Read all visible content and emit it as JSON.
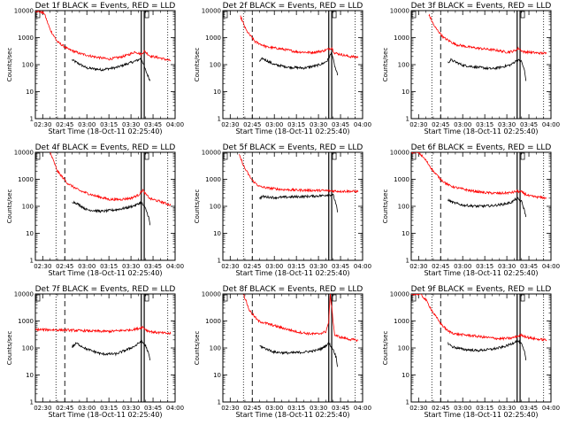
{
  "figure": {
    "y_axis_label": "Counts/sec",
    "x_axis_label": "Start Time (18-Oct-11 02:25:40)",
    "colors": {
      "events": "#000000",
      "lld": "#ff0000",
      "background": "#ffffff"
    }
  },
  "chart_data": [
    {
      "type": "line",
      "title": "Det 1f BLACK = Events, RED = LLD",
      "xlabel": "Start Time (18-Oct-11 02:25:40)",
      "ylabel": "Counts/sec",
      "x_ticks": [
        "02:30",
        "02:45",
        "03:00",
        "03:15",
        "03:30",
        "03:45",
        "04:00"
      ],
      "y_ticks": [
        "1",
        "10",
        "100",
        "1000",
        "10000"
      ],
      "xlim": [
        0,
        95
      ],
      "ylim": [
        1,
        10000
      ],
      "yscale": "log",
      "series": [
        {
          "name": "BLACK = Events",
          "color": "#000000",
          "x": [
            25,
            28,
            35,
            45,
            55,
            63,
            68,
            72,
            75,
            78
          ],
          "y": [
            150,
            120,
            75,
            65,
            78,
            110,
            135,
            170,
            60,
            25
          ]
        },
        {
          "name": "RED = LLD",
          "color": "#ff0000",
          "x": [
            0,
            6,
            10,
            15,
            22,
            30,
            40,
            50,
            58,
            63,
            68,
            72,
            74,
            78,
            85,
            92
          ],
          "y": [
            10000,
            8000,
            2000,
            700,
            380,
            260,
            195,
            160,
            190,
            230,
            300,
            240,
            320,
            210,
            175,
            140
          ]
        }
      ]
    },
    {
      "type": "line",
      "title": "Det 2f BLACK = Events, RED = LLD",
      "xlabel": "Start Time (18-Oct-11 02:25:40)",
      "ylabel": "",
      "x_ticks": [
        "02:30",
        "02:45",
        "03:00",
        "03:15",
        "03:30",
        "03:45",
        "04:00"
      ],
      "y_ticks": [
        "1",
        "10",
        "100",
        "1000",
        "10000"
      ],
      "xlim": [
        0,
        95
      ],
      "ylim": [
        1,
        10000
      ],
      "yscale": "log",
      "series": [
        {
          "name": "BLACK = Events",
          "color": "#000000",
          "x": [
            25,
            27,
            35,
            45,
            55,
            63,
            68,
            71,
            74,
            76,
            78
          ],
          "y": [
            130,
            170,
            100,
            80,
            75,
            90,
            110,
            140,
            280,
            90,
            40
          ]
        },
        {
          "name": "RED = LLD",
          "color": "#ff0000",
          "x": [
            12,
            16,
            22,
            30,
            40,
            50,
            60,
            68,
            72,
            74,
            76,
            80,
            86,
            92
          ],
          "y": [
            6000,
            1800,
            700,
            450,
            380,
            300,
            280,
            320,
            380,
            420,
            270,
            240,
            200,
            190
          ]
        }
      ]
    },
    {
      "type": "line",
      "title": "Det 3f BLACK = Events, RED = LLD",
      "xlabel": "Start Time (18-Oct-11 02:25:40)",
      "ylabel": "",
      "x_ticks": [
        "02:30",
        "02:45",
        "03:00",
        "03:15",
        "03:30",
        "03:45",
        "04:00"
      ],
      "y_ticks": [
        "1",
        "10",
        "100",
        "1000",
        "10000"
      ],
      "xlim": [
        0,
        95
      ],
      "ylim": [
        1,
        10000
      ],
      "yscale": "log",
      "series": [
        {
          "name": "BLACK = Events",
          "color": "#000000",
          "x": [
            25,
            27,
            35,
            45,
            55,
            63,
            68,
            72,
            75,
            77,
            78
          ],
          "y": [
            120,
            150,
            95,
            80,
            70,
            85,
            100,
            150,
            130,
            60,
            25
          ]
        },
        {
          "name": "RED = LLD",
          "color": "#ff0000",
          "x": [
            12,
            16,
            22,
            30,
            40,
            50,
            58,
            65,
            70,
            73,
            76,
            80,
            86,
            92
          ],
          "y": [
            7000,
            2500,
            1000,
            560,
            440,
            380,
            340,
            290,
            320,
            400,
            300,
            290,
            270,
            260
          ]
        }
      ]
    },
    {
      "type": "line",
      "title": "Det 4f BLACK = Events, RED = LLD",
      "xlabel": "Start Time (18-Oct-11 02:25:40)",
      "ylabel": "Counts/sec",
      "x_ticks": [
        "02:30",
        "02:45",
        "03:00",
        "03:15",
        "03:30",
        "03:45",
        "04:00"
      ],
      "y_ticks": [
        "1",
        "10",
        "100",
        "1000",
        "10000"
      ],
      "xlim": [
        0,
        95
      ],
      "ylim": [
        1,
        10000
      ],
      "yscale": "log",
      "series": [
        {
          "name": "BLACK = Events",
          "color": "#000000",
          "x": [
            25,
            28,
            35,
            45,
            55,
            63,
            68,
            72,
            75,
            77,
            78
          ],
          "y": [
            150,
            130,
            75,
            65,
            75,
            90,
            110,
            140,
            80,
            40,
            20
          ]
        },
        {
          "name": "RED = LLD",
          "color": "#ff0000",
          "x": [
            10,
            15,
            22,
            30,
            40,
            50,
            58,
            65,
            70,
            73,
            75,
            78,
            85,
            92
          ],
          "y": [
            10000,
            2000,
            700,
            380,
            250,
            180,
            180,
            200,
            260,
            400,
            280,
            190,
            150,
            110
          ]
        }
      ]
    },
    {
      "type": "line",
      "title": "Det 5f BLACK = Events, RED = LLD",
      "xlabel": "Start Time (18-Oct-11 02:25:40)",
      "ylabel": "",
      "x_ticks": [
        "02:30",
        "02:45",
        "03:00",
        "03:15",
        "03:30",
        "03:45",
        "04:00"
      ],
      "y_ticks": [
        "1",
        "10",
        "100",
        "1000",
        "10000"
      ],
      "xlim": [
        0,
        95
      ],
      "ylim": [
        1,
        10000
      ],
      "yscale": "log",
      "series": [
        {
          "name": "BLACK = Events",
          "color": "#000000",
          "x": [
            25,
            27,
            35,
            45,
            55,
            63,
            68,
            72,
            75,
            77,
            78
          ],
          "y": [
            200,
            230,
            210,
            220,
            230,
            240,
            250,
            270,
            260,
            120,
            60
          ]
        },
        {
          "name": "RED = LLD",
          "color": "#ff0000",
          "x": [
            11,
            15,
            20,
            25,
            30,
            40,
            50,
            60,
            70,
            75,
            80,
            86,
            92
          ],
          "y": [
            8000,
            2500,
            900,
            540,
            480,
            420,
            400,
            390,
            380,
            370,
            360,
            360,
            350
          ]
        }
      ]
    },
    {
      "type": "line",
      "title": "Det 6f BLACK = Events, RED = LLD",
      "xlabel": "Start Time (18-Oct-11 02:25:40)",
      "ylabel": "",
      "x_ticks": [
        "02:30",
        "02:45",
        "03:00",
        "03:15",
        "03:30",
        "03:45",
        "04:00"
      ],
      "y_ticks": [
        "1",
        "10",
        "100",
        "1000",
        "10000"
      ],
      "xlim": [
        0,
        95
      ],
      "ylim": [
        1,
        10000
      ],
      "yscale": "log",
      "series": [
        {
          "name": "BLACK = Events",
          "color": "#000000",
          "x": [
            25,
            28,
            35,
            45,
            55,
            63,
            68,
            72,
            75,
            77,
            78
          ],
          "y": [
            170,
            140,
            110,
            100,
            105,
            120,
            140,
            200,
            150,
            70,
            40
          ]
        },
        {
          "name": "RED = LLD",
          "color": "#ff0000",
          "x": [
            0,
            5,
            10,
            15,
            20,
            25,
            30,
            40,
            50,
            60,
            68,
            72,
            75,
            80,
            86,
            92
          ],
          "y": [
            10000,
            10000,
            5000,
            2000,
            1000,
            620,
            500,
            380,
            320,
            300,
            320,
            360,
            340,
            240,
            220,
            200
          ]
        }
      ]
    },
    {
      "type": "line",
      "title": "Det 7f BLACK = Events, RED = LLD",
      "xlabel": "Start Time (18-Oct-11 02:25:40)",
      "ylabel": "Counts/sec",
      "x_ticks": [
        "02:30",
        "02:45",
        "03:00",
        "03:15",
        "03:30",
        "03:45",
        "04:00"
      ],
      "y_ticks": [
        "1",
        "10",
        "100",
        "1000",
        "10000"
      ],
      "xlim": [
        0,
        95
      ],
      "ylim": [
        1,
        10000
      ],
      "yscale": "log",
      "series": [
        {
          "name": "BLACK = Events",
          "color": "#000000",
          "x": [
            25,
            28,
            35,
            45,
            55,
            63,
            68,
            72,
            75,
            77,
            78
          ],
          "y": [
            110,
            150,
            90,
            60,
            60,
            90,
            120,
            180,
            120,
            60,
            35
          ]
        },
        {
          "name": "RED = LLD",
          "color": "#ff0000",
          "x": [
            0,
            10,
            20,
            30,
            40,
            50,
            58,
            65,
            70,
            73,
            76,
            80,
            86,
            92
          ],
          "y": [
            480,
            470,
            460,
            440,
            420,
            410,
            440,
            470,
            520,
            600,
            440,
            390,
            360,
            340
          ]
        }
      ]
    },
    {
      "type": "line",
      "title": "Det 8f BLACK = Events, RED = LLD",
      "xlabel": "Start Time (18-Oct-11 02:25:40)",
      "ylabel": "",
      "x_ticks": [
        "02:30",
        "02:45",
        "03:00",
        "03:15",
        "03:30",
        "03:45",
        "04:00"
      ],
      "y_ticks": [
        "1",
        "10",
        "100",
        "1000",
        "10000"
      ],
      "xlim": [
        0,
        95
      ],
      "ylim": [
        1,
        10000
      ],
      "yscale": "log",
      "series": [
        {
          "name": "BLACK = Events",
          "color": "#000000",
          "x": [
            25,
            28,
            35,
            45,
            55,
            63,
            68,
            72,
            75,
            77,
            78
          ],
          "y": [
            120,
            100,
            70,
            65,
            70,
            80,
            100,
            150,
            90,
            45,
            20
          ]
        },
        {
          "name": "RED = LLD",
          "color": "#ff0000",
          "x": [
            14,
            18,
            24,
            30,
            40,
            50,
            58,
            65,
            70,
            72,
            73,
            76,
            80,
            86,
            92
          ],
          "y": [
            10000,
            2500,
            1000,
            800,
            560,
            400,
            340,
            330,
            400,
            900,
            10000,
            300,
            250,
            210,
            190
          ]
        }
      ]
    },
    {
      "type": "line",
      "title": "Det 9f BLACK = Events, RED = LLD",
      "xlabel": "Start Time (18-Oct-11 02:25:40)",
      "ylabel": "",
      "x_ticks": [
        "02:30",
        "02:45",
        "03:00",
        "03:15",
        "03:30",
        "03:45",
        "04:00"
      ],
      "y_ticks": [
        "1",
        "10",
        "100",
        "1000",
        "10000"
      ],
      "xlim": [
        0,
        95
      ],
      "ylim": [
        1,
        10000
      ],
      "yscale": "log",
      "series": [
        {
          "name": "BLACK = Events",
          "color": "#000000",
          "x": [
            25,
            28,
            35,
            45,
            55,
            63,
            68,
            72,
            75,
            77,
            78
          ],
          "y": [
            150,
            110,
            90,
            80,
            90,
            110,
            140,
            190,
            140,
            70,
            35
          ]
        },
        {
          "name": "RED = LLD",
          "color": "#ff0000",
          "x": [
            0,
            6,
            10,
            15,
            20,
            25,
            30,
            40,
            50,
            60,
            68,
            72,
            75,
            80,
            86,
            92
          ],
          "y": [
            10000,
            10000,
            6000,
            2000,
            800,
            420,
            330,
            290,
            250,
            220,
            230,
            270,
            300,
            240,
            210,
            200
          ]
        }
      ]
    }
  ]
}
